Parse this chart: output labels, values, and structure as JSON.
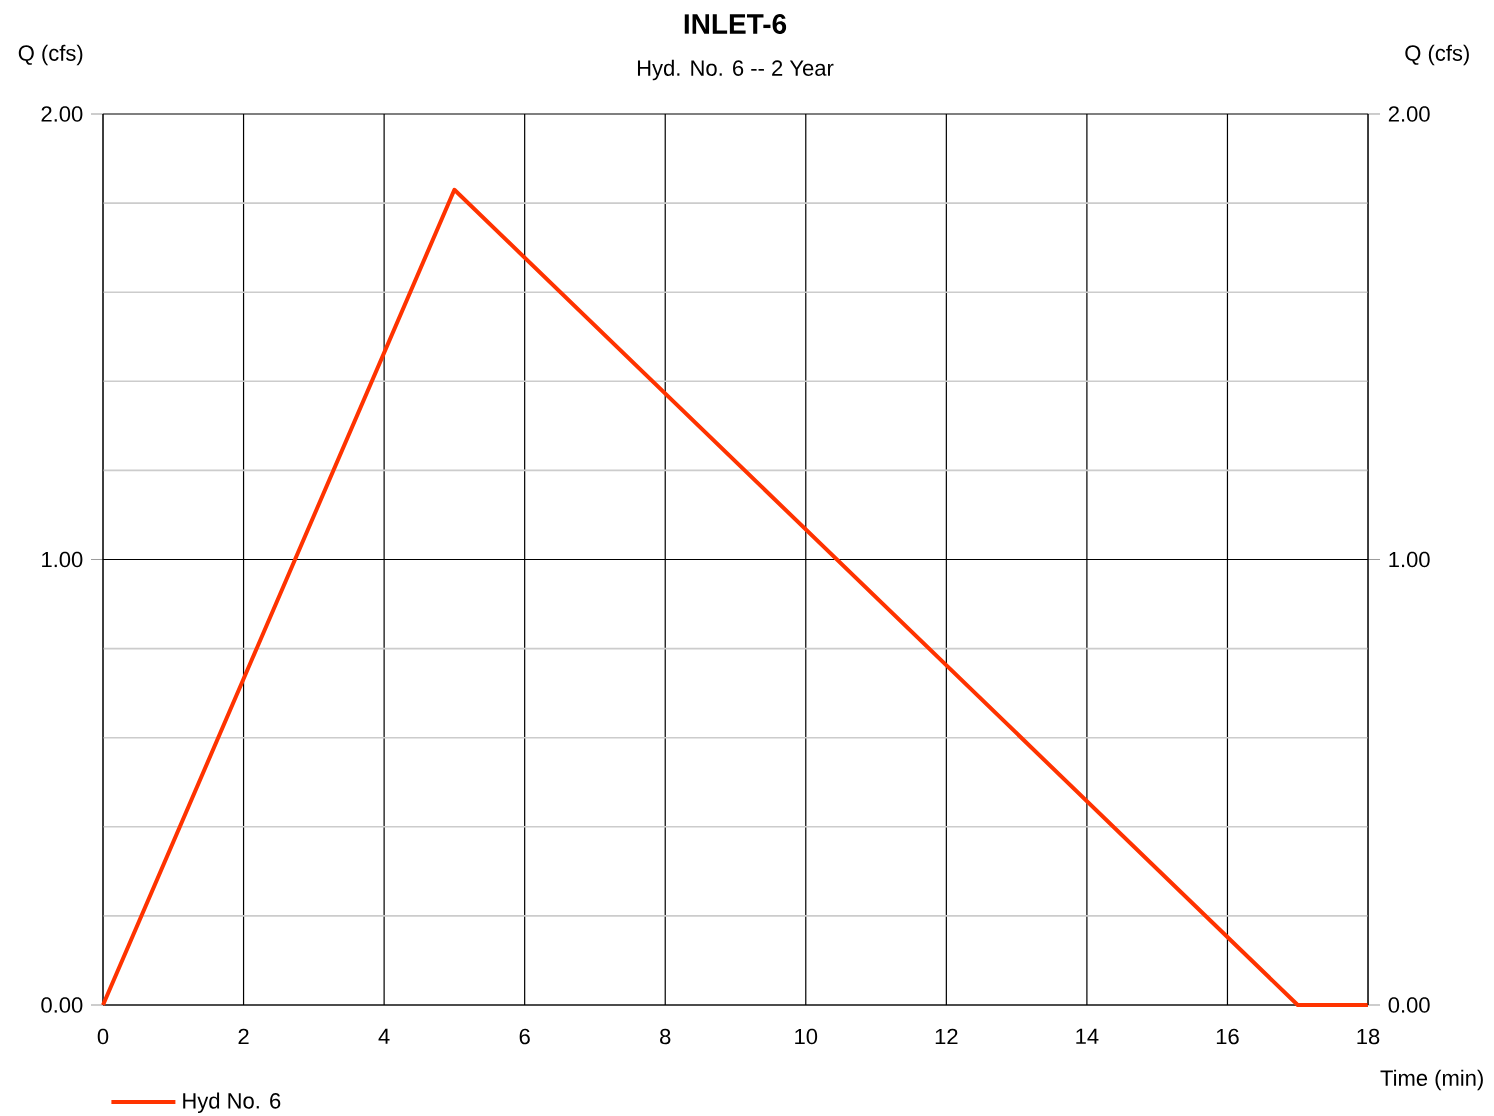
{
  "chart_data": {
    "type": "line",
    "title": "INLET-6",
    "subtitle": "Hyd. No. 6 -- 2 Year",
    "xlabel": "Time (min)",
    "ylabel": "Q (cfs)",
    "y2label": "Q (cfs)",
    "x": [
      0,
      5,
      17,
      18
    ],
    "series": [
      {
        "name": "Hyd No. 6",
        "color": "#ff3300",
        "values": [
          0,
          1.83,
          0,
          0
        ]
      }
    ],
    "xlim": [
      0,
      18
    ],
    "xticks": [
      0,
      2,
      4,
      6,
      8,
      10,
      12,
      14,
      16,
      18
    ],
    "ylim": [
      0,
      2
    ],
    "yticks": [
      {
        "value": 0,
        "label": "0.00"
      },
      {
        "value": 0.2,
        "label": null
      },
      {
        "value": 0.4,
        "label": null
      },
      {
        "value": 0.6,
        "label": null
      },
      {
        "value": 0.8,
        "label": null
      },
      {
        "value": 1,
        "label": "1.00"
      },
      {
        "value": 1.2,
        "label": null
      },
      {
        "value": 1.4,
        "label": null
      },
      {
        "value": 1.6,
        "label": null
      },
      {
        "value": 1.8,
        "label": null
      },
      {
        "value": 2,
        "label": "2.00"
      }
    ],
    "y2lim": [
      0,
      2
    ],
    "y2ticks": [
      {
        "value": 0,
        "label": "0.00"
      },
      {
        "value": 1,
        "label": "1.00"
      },
      {
        "value": 2,
        "label": "2.00"
      }
    ],
    "grid": true,
    "legend": "bottom left",
    "marker": "none",
    "line_style": "solid"
  }
}
